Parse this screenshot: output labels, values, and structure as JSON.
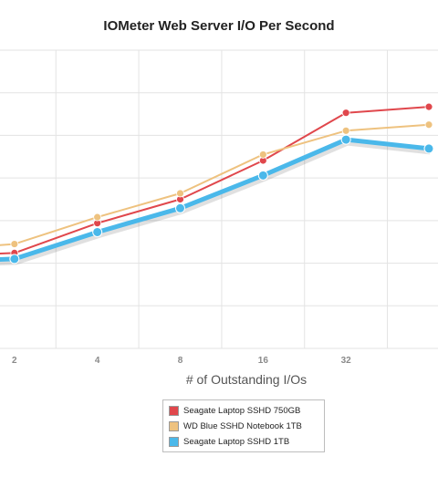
{
  "chart_data": {
    "type": "line",
    "title": "IOMeter Web Server I/O Per Second",
    "xlabel": "# of Outstanding I/Os",
    "ylabel": "",
    "categories": [
      "",
      "2",
      "4",
      "8",
      "16",
      "32",
      ""
    ],
    "series": [
      {
        "name": "Seagate Laptop SSHD 750GB",
        "color": "#e0474c",
        "values": [
          3.1,
          3.2,
          4.2,
          5.0,
          6.3,
          7.9,
          8.1
        ]
      },
      {
        "name": "WD Blue SSHD Notebook 1TB",
        "color": "#eec27f",
        "values": [
          3.3,
          3.5,
          4.4,
          5.2,
          6.5,
          7.3,
          7.5
        ]
      },
      {
        "name": "Seagate Laptop SSHD 1TB",
        "color": "#4ab8ea",
        "values": [
          2.9,
          3.0,
          3.9,
          4.7,
          5.8,
          7.0,
          6.7
        ]
      }
    ],
    "ylim": [
      0,
      10
    ],
    "grid": true,
    "legend_position": "bottom-center"
  }
}
